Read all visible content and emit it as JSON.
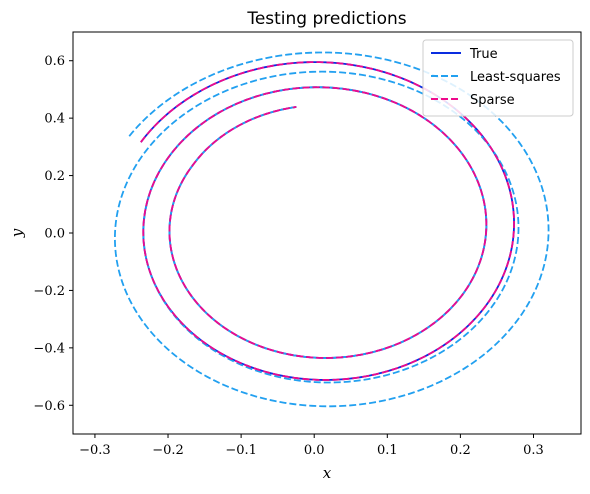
{
  "chart_data": {
    "type": "line",
    "title": "Testing predictions",
    "xlabel": "x",
    "ylabel": "y",
    "xlim": [
      -0.33,
      0.365
    ],
    "ylim": [
      -0.7,
      0.7
    ],
    "xticks": [
      -0.3,
      -0.2,
      -0.1,
      0.0,
      0.1,
      0.2,
      0.3
    ],
    "yticks": [
      -0.6,
      -0.4,
      -0.2,
      0.0,
      0.2,
      0.4,
      0.6
    ],
    "xtick_labels": [
      "−0.3",
      "−0.2",
      "−0.1",
      "0.0",
      "0.1",
      "0.2",
      "0.3"
    ],
    "ytick_labels": [
      "−0.6",
      "−0.4",
      "−0.2",
      "0.0",
      "0.2",
      "0.4",
      "0.6"
    ],
    "grid": false,
    "legend_position": "top-right",
    "series": [
      {
        "name": "True",
        "color": "#0a2de0",
        "dash": "solid",
        "start_point": [
          -0.3,
          0.2
        ],
        "end_point": [
          -0.05,
          0.37
        ],
        "loop_x_extents": [
          [
            -0.275,
            0.29
          ],
          [
            -0.23,
            0.25
          ],
          [
            -0.195,
            0.215
          ]
        ],
        "loop_y_extents": [
          [
            -0.565,
            0.61
          ],
          [
            -0.485,
            0.52
          ],
          [
            -0.41,
            0.445
          ]
        ]
      },
      {
        "name": "Least-squares",
        "color": "#22a0f0",
        "dash": "dashed",
        "start_point": [
          -0.3,
          0.2
        ],
        "end_point": [
          -0.05,
          0.37
        ],
        "loop_x_extents": [
          [
            -0.3,
            0.335
          ],
          [
            -0.27,
            0.3
          ],
          [
            -0.23,
            0.25
          ],
          [
            -0.195,
            0.215
          ]
        ],
        "loop_y_extents": [
          [
            -0.63,
            0.64
          ],
          [
            -0.59,
            0.57
          ],
          [
            -0.485,
            0.52
          ],
          [
            -0.41,
            0.445
          ]
        ]
      },
      {
        "name": "Sparse",
        "color": "#ee0a8c",
        "dash": "dashed",
        "start_point": [
          -0.3,
          0.2
        ],
        "end_point": [
          -0.05,
          0.37
        ],
        "loop_x_extents": [
          [
            -0.275,
            0.29
          ],
          [
            -0.23,
            0.25
          ],
          [
            -0.195,
            0.215
          ]
        ],
        "loop_y_extents": [
          [
            -0.565,
            0.61
          ],
          [
            -0.485,
            0.52
          ],
          [
            -0.41,
            0.445
          ]
        ]
      }
    ]
  }
}
